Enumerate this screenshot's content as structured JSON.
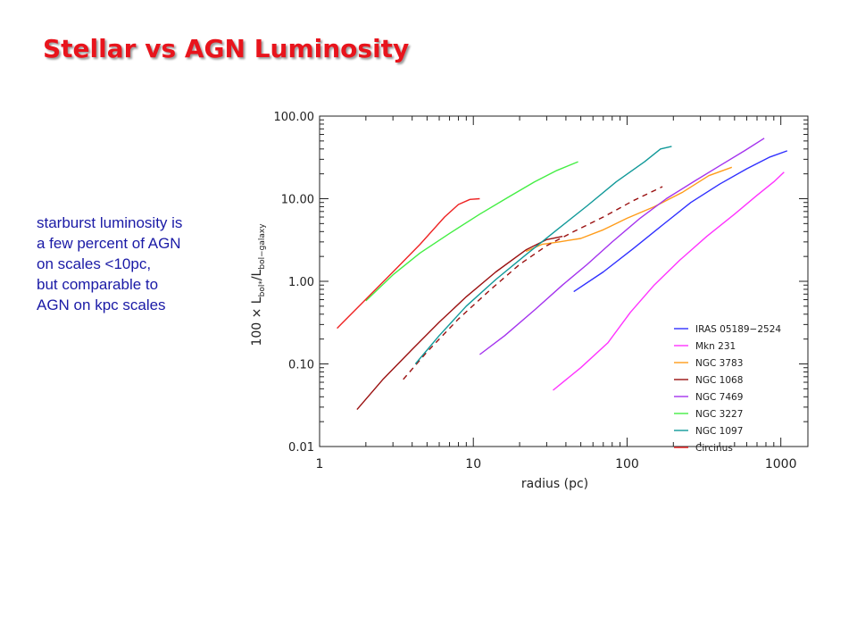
{
  "slide": {
    "title": "Stellar vs AGN Luminosity",
    "note_lines": [
      "starburst luminosity is",
      "a few percent of AGN",
      "on scales <10pc,",
      "but comparable to",
      "AGN on kpc scales"
    ]
  },
  "chart_data": {
    "type": "line",
    "title": "",
    "xlabel": "radius (pc)",
    "ylabel": "100 × Lbol*/Lbol−galaxy",
    "ylabel_parts": {
      "prefix": "100 × L",
      "sub1": "bol*",
      "slash": "/L",
      "sub2": "bol−galaxy"
    },
    "x_scale": "log",
    "y_scale": "log",
    "xlim": [
      1,
      1500
    ],
    "ylim": [
      0.01,
      100
    ],
    "x_ticks": [
      {
        "value": 1,
        "label": "1"
      },
      {
        "value": 10,
        "label": "10"
      },
      {
        "value": 100,
        "label": "100"
      },
      {
        "value": 1000,
        "label": "1000"
      }
    ],
    "y_ticks": [
      {
        "value": 0.01,
        "label": "0.01"
      },
      {
        "value": 0.1,
        "label": "0.10"
      },
      {
        "value": 1,
        "label": "1.00"
      },
      {
        "value": 10,
        "label": "10.00"
      },
      {
        "value": 100,
        "label": "100.00"
      }
    ],
    "grid": false,
    "legend_position": "bottom-right",
    "series": [
      {
        "name": "IRAS 05189−2524",
        "color": "#3030ff",
        "x": [
          45,
          70,
          110,
          170,
          260,
          400,
          600,
          850,
          1100
        ],
        "y": [
          0.75,
          1.3,
          2.5,
          4.8,
          9,
          15,
          23,
          32,
          38
        ]
      },
      {
        "name": "Mkn 231",
        "color": "#ff33ff",
        "x": [
          33,
          50,
          75,
          105,
          150,
          220,
          330,
          500,
          700,
          900,
          1050
        ],
        "y": [
          0.048,
          0.09,
          0.18,
          0.42,
          0.9,
          1.8,
          3.5,
          6.5,
          11,
          16,
          21
        ]
      },
      {
        "name": "NGC 3783",
        "color": "#ff9c1a",
        "x": [
          22,
          28,
          36,
          50,
          70,
          100,
          150,
          230,
          340,
          480
        ],
        "y": [
          2.3,
          2.8,
          3.0,
          3.3,
          4.2,
          5.8,
          8.0,
          12,
          19,
          24
        ]
      },
      {
        "name": "NGC 1068",
        "color": "#9a1010",
        "x": [
          1.75,
          2.6,
          4,
          6,
          9,
          14,
          22,
          30,
          38
        ],
        "y": [
          0.028,
          0.066,
          0.15,
          0.32,
          0.65,
          1.3,
          2.4,
          3.2,
          3.5
        ]
      },
      {
        "name": "NGC 1068 (dashed)",
        "color": "#9a1010",
        "dashed": true,
        "x": [
          3.5,
          5,
          8,
          13,
          20,
          30,
          45,
          70,
          110,
          170
        ],
        "y": [
          0.065,
          0.14,
          0.35,
          0.8,
          1.6,
          2.7,
          4.0,
          6.0,
          9.5,
          14
        ]
      },
      {
        "name": "NGC 7469",
        "color": "#a433ee",
        "x": [
          11,
          16,
          25,
          38,
          55,
          80,
          120,
          180,
          270,
          400,
          580,
          780
        ],
        "y": [
          0.13,
          0.22,
          0.45,
          0.9,
          1.6,
          3.0,
          5.7,
          10,
          16,
          25,
          38,
          54
        ]
      },
      {
        "name": "NGC 3227",
        "color": "#44ee44",
        "x": [
          2,
          3,
          4.5,
          7,
          11,
          17,
          25,
          35,
          48
        ],
        "y": [
          0.58,
          1.2,
          2.2,
          3.8,
          6.5,
          10.5,
          16,
          22,
          28
        ]
      },
      {
        "name": "NGC 1097",
        "color": "#119999",
        "x": [
          4.2,
          6,
          9,
          14,
          22,
          35,
          55,
          85,
          130,
          165,
          195
        ],
        "y": [
          0.1,
          0.22,
          0.5,
          1.05,
          2.1,
          4.2,
          8.2,
          16,
          28,
          40,
          43
        ]
      },
      {
        "name": "Circinus",
        "color": "#ee2222",
        "x": [
          1.3,
          1.9,
          3,
          4.5,
          6.5,
          8,
          9.5,
          11
        ],
        "y": [
          0.27,
          0.55,
          1.3,
          2.8,
          6.0,
          8.5,
          9.8,
          10
        ]
      }
    ],
    "legend": [
      {
        "label": "IRAS 05189−2524",
        "color": "#3030ff"
      },
      {
        "label": "Mkn 231",
        "color": "#ff33ff"
      },
      {
        "label": "NGC 3783",
        "color": "#ff9c1a"
      },
      {
        "label": "NGC 1068",
        "color": "#9a1010"
      },
      {
        "label": "NGC 7469",
        "color": "#a433ee"
      },
      {
        "label": "NGC 3227",
        "color": "#44ee44"
      },
      {
        "label": "NGC 1097",
        "color": "#119999"
      },
      {
        "label": "Circinus",
        "color": "#ee2222"
      }
    ]
  }
}
